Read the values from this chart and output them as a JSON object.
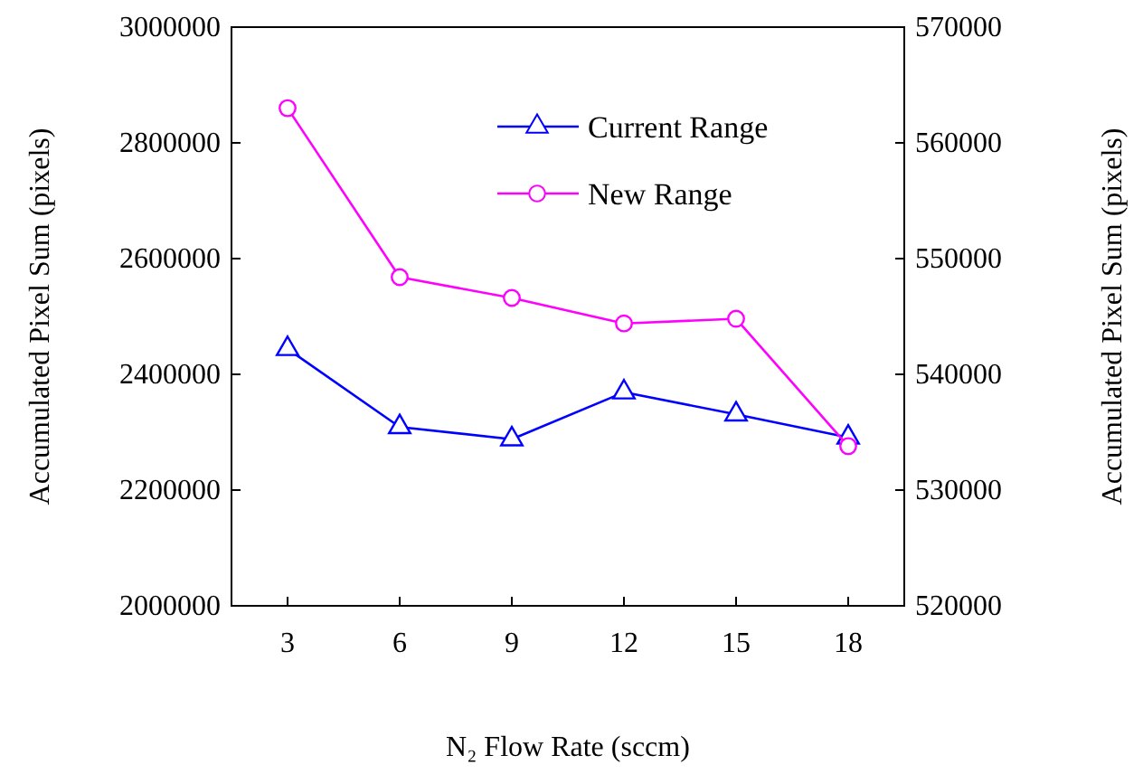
{
  "chart_data": {
    "type": "line",
    "xlabel": "N₂ Flow Rate (sccm)",
    "ylabel": "Accumulated Pixel Sum (pixels)",
    "y2label": "Accumulated Pixel Sum (pixels)",
    "categories": [
      "3",
      "6",
      "9",
      "12",
      "15",
      "18"
    ],
    "ylim": [
      2000000,
      3000000
    ],
    "yticks": [
      2000000,
      2200000,
      2400000,
      2600000,
      2800000,
      3000000
    ],
    "y2lim": [
      520000,
      570000
    ],
    "y2ticks": [
      520000,
      530000,
      540000,
      550000,
      560000,
      570000
    ],
    "grid": false,
    "legend": "top right",
    "series": [
      {
        "name": "Current Range",
        "color": "#0000ff",
        "marker": "triangle",
        "values": [
          2444000,
          2309000,
          2288000,
          2369000,
          2331000,
          2291000
        ]
      },
      {
        "name": "New Range",
        "color": "#ff00ff",
        "marker": "circle",
        "axis": "y2",
        "values": [
          563000,
          548400,
          546600,
          544400,
          544800,
          533800
        ]
      }
    ]
  }
}
